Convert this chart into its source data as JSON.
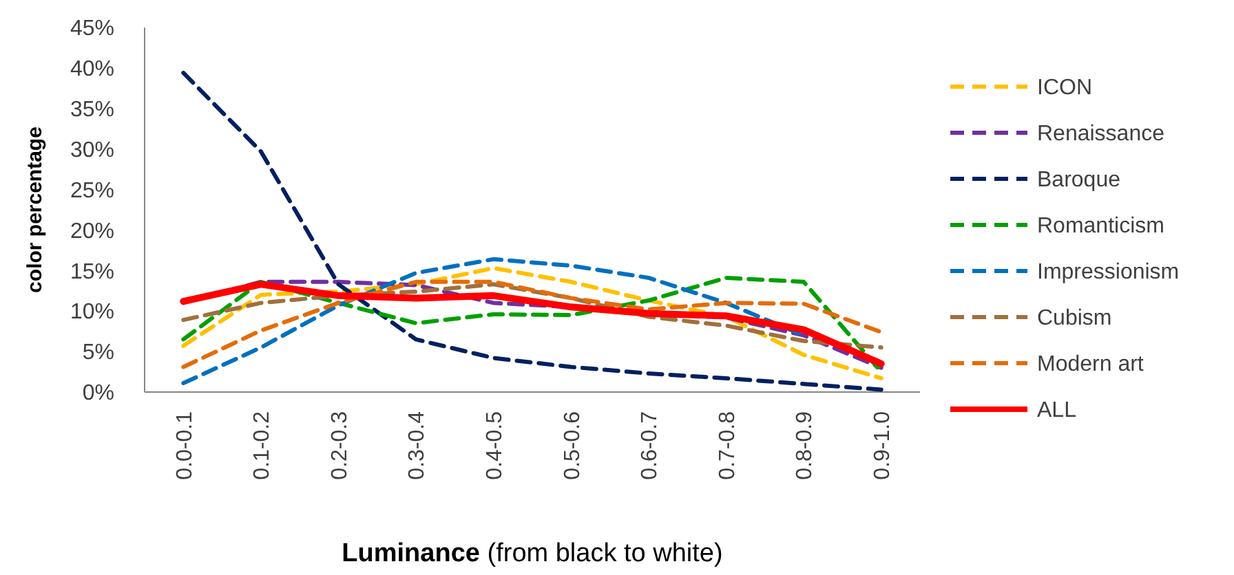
{
  "chart_data": {
    "type": "line",
    "xlabel": "Luminance  (from black to white)",
    "ylabel": "color percentage",
    "categories": [
      "0.0-0.1",
      "0.1-0.2",
      "0.2-0.3",
      "0.3-0.4",
      "0.4-0.5",
      "0.5-0.6",
      "0.6-0.7",
      "0.7-0.8",
      "0.8-0.9",
      "0.9-1.0"
    ],
    "ylim": [
      0,
      45
    ],
    "yticks": [
      {
        "value": 0,
        "label": "0%"
      },
      {
        "value": 5,
        "label": "5%"
      },
      {
        "value": 10,
        "label": "10%"
      },
      {
        "value": 15,
        "label": "15%"
      },
      {
        "value": 20,
        "label": "20%"
      },
      {
        "value": 25,
        "label": "25%"
      },
      {
        "value": 30,
        "label": "30%"
      },
      {
        "value": 35,
        "label": "35%"
      },
      {
        "value": 40,
        "label": "40%"
      },
      {
        "value": 45,
        "label": "45%"
      }
    ],
    "grid": false,
    "legend": "right",
    "marker": "none",
    "series": [
      {
        "name": "ICON",
        "color": "#ffc000",
        "line_style": "dashed",
        "values": [
          5.7,
          12.0,
          12.4,
          13.3,
          15.3,
          13.6,
          11.3,
          9.3,
          4.6,
          1.7
        ]
      },
      {
        "name": "Renaissance",
        "color": "#7030a0",
        "line_style": "dashed",
        "values": [
          11.0,
          13.6,
          13.6,
          13.2,
          11.0,
          10.5,
          9.7,
          9.2,
          7.0,
          3.0
        ]
      },
      {
        "name": "Baroque",
        "color": "#002060",
        "line_style": "dashed",
        "values": [
          39.4,
          29.7,
          13.3,
          6.5,
          4.2,
          3.1,
          2.3,
          1.7,
          1.0,
          0.3
        ]
      },
      {
        "name": "Romanticism",
        "color": "#00a000",
        "line_style": "dashed",
        "values": [
          6.5,
          13.6,
          11.0,
          8.5,
          9.6,
          9.5,
          11.3,
          14.1,
          13.6,
          2.5
        ]
      },
      {
        "name": "Impressionism",
        "color": "#0070c0",
        "line_style": "dashed",
        "values": [
          1.1,
          5.5,
          10.7,
          14.7,
          16.4,
          15.6,
          14.1,
          11.0,
          7.0,
          null
        ]
      },
      {
        "name": "Cubism",
        "color": "#a0703c",
        "line_style": "dashed",
        "values": [
          8.9,
          11.0,
          11.9,
          12.4,
          13.3,
          11.6,
          9.3,
          8.2,
          6.3,
          5.5
        ]
      },
      {
        "name": "Modern art",
        "color": "#e46c0a",
        "line_style": "dashed",
        "values": [
          3.1,
          7.6,
          11.0,
          13.6,
          13.6,
          11.6,
          10.2,
          11.0,
          10.9,
          7.4
        ]
      },
      {
        "name": "ALL",
        "color": "#ff0000",
        "line_style": "solid",
        "values": [
          11.2,
          13.3,
          11.9,
          11.6,
          11.9,
          10.5,
          9.7,
          9.4,
          7.7,
          3.5
        ]
      }
    ]
  }
}
